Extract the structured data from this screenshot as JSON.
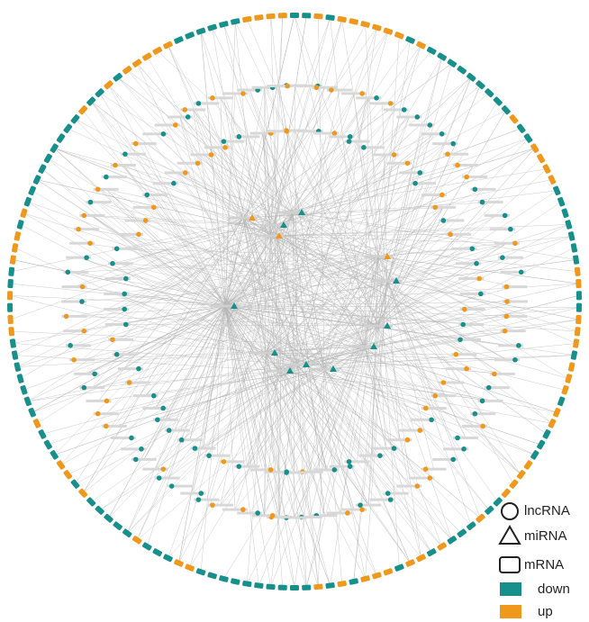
{
  "legend": {
    "items": [
      {
        "label": "lncRNA",
        "shape": "circle"
      },
      {
        "label": "miRNA",
        "shape": "triangle"
      },
      {
        "label": "mRNA",
        "shape": "square"
      },
      {
        "label": "down",
        "shape": "swatch",
        "color": "#178f8b"
      },
      {
        "label": "up",
        "shape": "swatch",
        "color": "#f0981c"
      }
    ]
  }
}
